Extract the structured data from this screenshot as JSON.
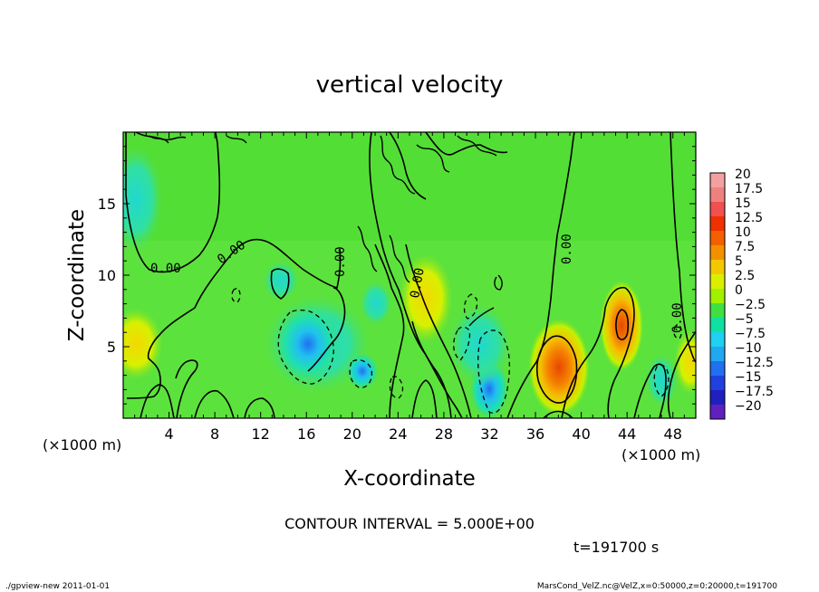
{
  "chart_data": {
    "type": "heatmap",
    "title": "vertical velocity",
    "xlabel": "X-coordinate",
    "ylabel": "Z-coordinate",
    "x_unit_left": "(×1000 m)",
    "x_unit_right": "(×1000 m)",
    "xlim": [
      0,
      50
    ],
    "ylim": [
      0,
      20
    ],
    "x_ticks": [
      "4",
      "8",
      "12",
      "16",
      "20",
      "24",
      "28",
      "32",
      "36",
      "40",
      "44",
      "48"
    ],
    "y_ticks": [
      "5",
      "10",
      "15"
    ],
    "colorbar_labels": [
      "20",
      "17.5",
      "15",
      "12.5",
      "10",
      "7.5",
      "5",
      "2.5",
      "0",
      "−2.5",
      "−5",
      "−7.5",
      "−10",
      "−12.5",
      "−15",
      "−17.5",
      "−20"
    ],
    "colorbar_colors": [
      "#f4a0a0",
      "#f08080",
      "#f05050",
      "#f03000",
      "#f46000",
      "#f49000",
      "#f4c800",
      "#d8f000",
      "#a0f000",
      "#40e040",
      "#10e0a0",
      "#20d0f0",
      "#20a8f0",
      "#2070f0",
      "#2040e0",
      "#2020c0",
      "#6020c0"
    ],
    "contour_labels": [
      "0.00",
      "0.00",
      "0.00",
      "0.00",
      "0.00",
      "0.00"
    ],
    "contour_interval": "CONTOUR INTERVAL = 5.000E+00",
    "time_label": "t=191700 s"
  },
  "footer": {
    "left": "./gpview-new  2011-01-01",
    "right": "MarsCond_VelZ.nc@VelZ,x=0:50000,z=0:20000,t=191700"
  }
}
